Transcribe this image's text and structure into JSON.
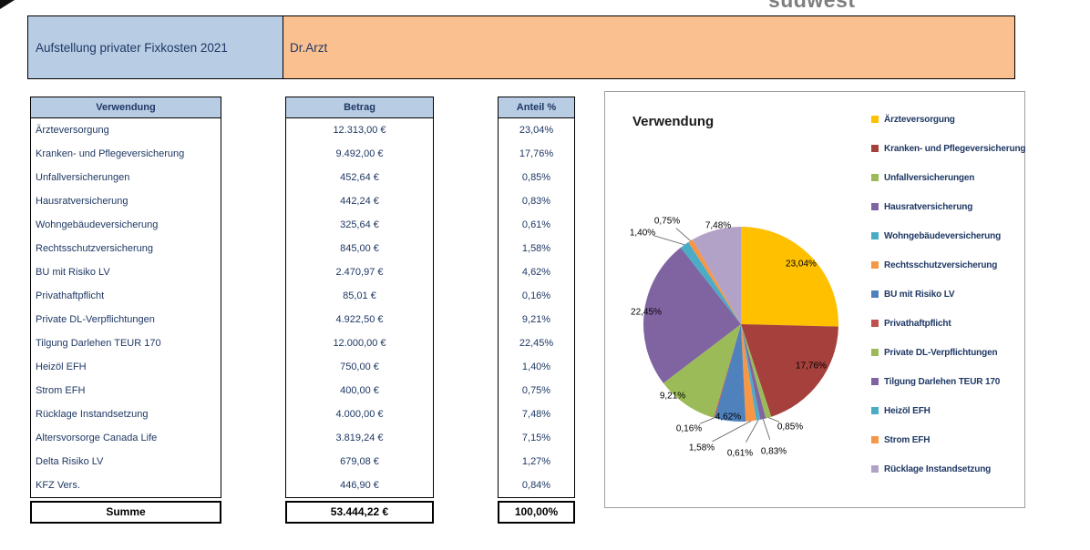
{
  "page": {
    "logo": "südwest",
    "title": "Aufstellung privater Fixkosten 2021",
    "subtitle": "Dr.Arzt"
  },
  "theme": {
    "header_blue": "#B8CCE4",
    "band_peach": "#FAC090"
  },
  "table": {
    "columns": {
      "usage": "Verwendung",
      "amount": "Betrag",
      "share": "Anteil %"
    },
    "rows": [
      {
        "usage": "Ärzteversorgung",
        "amount": "12.313,00 €",
        "share": "23,04%"
      },
      {
        "usage": "Kranken- und Pflegeversicherung",
        "amount": "9.492,00 €",
        "share": "17,76%"
      },
      {
        "usage": "Unfallversicherungen",
        "amount": "452,64 €",
        "share": "0,85%"
      },
      {
        "usage": "Hausratversicherung",
        "amount": "442,24 €",
        "share": "0,83%"
      },
      {
        "usage": "Wohngebäudeversicherung",
        "amount": "325,64 €",
        "share": "0,61%"
      },
      {
        "usage": "Rechtsschutzversicherung",
        "amount": "845,00 €",
        "share": "1,58%"
      },
      {
        "usage": "BU mit Risiko LV",
        "amount": "2.470,97 €",
        "share": "4,62%"
      },
      {
        "usage": "Privathaftpflicht",
        "amount": "85,01 €",
        "share": "0,16%"
      },
      {
        "usage": "Private DL-Verpflichtungen",
        "amount": "4.922,50 €",
        "share": "9,21%"
      },
      {
        "usage": "Tilgung Darlehen TEUR 170",
        "amount": "12.000,00 €",
        "share": "22,45%"
      },
      {
        "usage": "Heizöl EFH",
        "amount": "750,00 €",
        "share": "1,40%"
      },
      {
        "usage": "Strom EFH",
        "amount": "400,00 €",
        "share": "0,75%"
      },
      {
        "usage": "Rücklage Instandsetzung",
        "amount": "4.000,00 €",
        "share": "7,48%"
      },
      {
        "usage": "Altersvorsorge Canada Life",
        "amount": "3.819,24 €",
        "share": "7,15%"
      },
      {
        "usage": "Delta Risiko LV",
        "amount": "679,08 €",
        "share": "1,27%"
      },
      {
        "usage": "KFZ Vers.",
        "amount": "446,90 €",
        "share": "0,84%"
      }
    ],
    "total": {
      "label": "Summe",
      "amount": "53.444,22 €",
      "share": "100,00%"
    }
  },
  "chart_data": {
    "type": "pie",
    "title": "Verwendung",
    "legend_position": "right",
    "slices": [
      {
        "label": "Ärzteversorgung",
        "value": 23.04,
        "text": "23,04%",
        "color": "#FFC000"
      },
      {
        "label": "Kranken- und Pflegeversicherung",
        "value": 17.76,
        "text": "17,76%",
        "color": "#A5403C"
      },
      {
        "label": "Unfallversicherungen",
        "value": 0.85,
        "text": "0,85%",
        "color": "#9BBB59"
      },
      {
        "label": "Hausratversicherung",
        "value": 0.83,
        "text": "0,83%",
        "color": "#8064A2"
      },
      {
        "label": "Wohngebäudeversicherung",
        "value": 0.61,
        "text": "0,61%",
        "color": "#4BACC6"
      },
      {
        "label": "Rechtsschutzversicherung",
        "value": 1.58,
        "text": "1,58%",
        "color": "#F79646"
      },
      {
        "label": "BU mit Risiko LV",
        "value": 4.62,
        "text": "4,62%",
        "color": "#4F81BD"
      },
      {
        "label": "Privathaftpflicht",
        "value": 0.16,
        "text": "0,16%",
        "color": "#C0504D"
      },
      {
        "label": "Private DL-Verpflichtungen",
        "value": 9.21,
        "text": "9,21%",
        "color": "#9BBB59"
      },
      {
        "label": "Tilgung Darlehen TEUR 170",
        "value": 22.45,
        "text": "22,45%",
        "color": "#8064A2"
      },
      {
        "label": "Heizöl EFH",
        "value": 1.4,
        "text": "1,40%",
        "color": "#4BACC6"
      },
      {
        "label": "Strom EFH",
        "value": 0.75,
        "text": "0,75%",
        "color": "#F79646"
      },
      {
        "label": "Rücklage Instandsetzung",
        "value": 7.48,
        "text": "7,48%",
        "color": "#B3A2C7"
      }
    ]
  }
}
